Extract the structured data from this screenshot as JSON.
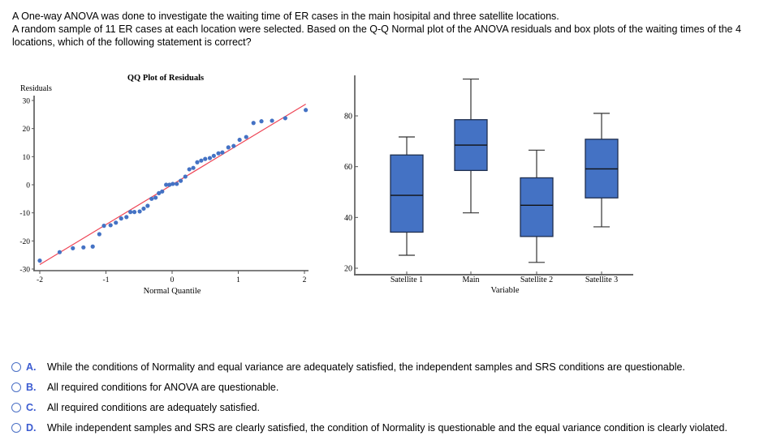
{
  "question": {
    "line1": "A One-way ANOVA was done to investigate the waiting time of ER cases in the main hosipital and three satellite locations.",
    "line2": "A random sample of 11 ER cases at each location were selected. Based on the Q-Q Normal plot of the ANOVA residuals and box plots of the waiting times of the 4 locations, which of the following statement is correct?"
  },
  "colors": {
    "point": "#4472c4",
    "ref_line": "#ee4455",
    "box_fill": "#4472c4",
    "option_letter": "#3b5bd1"
  },
  "chart_data": [
    {
      "type": "scatter",
      "title": "QQ Plot of Residuals",
      "xlabel": "Normal Quantile",
      "ylabel": "Residuals",
      "xlim": [
        -2.05,
        2.05
      ],
      "ylim": [
        -31,
        31
      ],
      "xticks": [
        -2,
        -1,
        0,
        1,
        2
      ],
      "xtick_labels": [
        "-2",
        "-1",
        "0",
        "1",
        "2"
      ],
      "yticks": [
        30,
        20,
        10,
        0,
        -10,
        -20,
        -30
      ],
      "ytick_labels": [
        "30",
        "20",
        "10",
        "0",
        "-10",
        "-20",
        "-30"
      ],
      "grid": false,
      "reference_line": {
        "x": [
          -2.0,
          2.02
        ],
        "y": [
          -28.4,
          28.7
        ]
      },
      "points": [
        [
          -2.0,
          -27.0
        ],
        [
          -1.7,
          -24.0
        ],
        [
          -1.5,
          -22.6
        ],
        [
          -1.34,
          -22.3
        ],
        [
          -1.2,
          -22.0
        ],
        [
          -1.1,
          -17.6
        ],
        [
          -1.03,
          -14.6
        ],
        [
          -0.93,
          -14.4
        ],
        [
          -0.85,
          -13.5
        ],
        [
          -0.77,
          -12.0
        ],
        [
          -0.69,
          -11.5
        ],
        [
          -0.63,
          -9.7
        ],
        [
          -0.57,
          -9.7
        ],
        [
          -0.49,
          -9.5
        ],
        [
          -0.43,
          -8.5
        ],
        [
          -0.37,
          -7.5
        ],
        [
          -0.31,
          -5.0
        ],
        [
          -0.25,
          -4.6
        ],
        [
          -0.2,
          -3.0
        ],
        [
          -0.15,
          -2.4
        ],
        [
          -0.09,
          0.0
        ],
        [
          -0.04,
          0.0
        ],
        [
          0.01,
          0.3
        ],
        [
          0.07,
          0.3
        ],
        [
          0.13,
          1.4
        ],
        [
          0.2,
          2.9
        ],
        [
          0.26,
          5.5
        ],
        [
          0.32,
          6.0
        ],
        [
          0.38,
          8.0
        ],
        [
          0.44,
          8.6
        ],
        [
          0.5,
          9.2
        ],
        [
          0.57,
          9.5
        ],
        [
          0.63,
          10.3
        ],
        [
          0.7,
          11.2
        ],
        [
          0.76,
          11.5
        ],
        [
          0.85,
          13.3
        ],
        [
          0.93,
          13.8
        ],
        [
          1.02,
          16.0
        ],
        [
          1.12,
          17.0
        ],
        [
          1.23,
          22.0
        ],
        [
          1.35,
          22.6
        ],
        [
          1.51,
          22.8
        ],
        [
          1.71,
          23.7
        ],
        [
          2.02,
          26.6
        ]
      ]
    },
    {
      "type": "box",
      "title": "",
      "xlabel": "Variable",
      "ylabel": "",
      "ylim": [
        17.5,
        97
      ],
      "yticks": [
        80,
        60,
        40,
        20
      ],
      "ytick_labels": [
        "80",
        "60",
        "40",
        "20"
      ],
      "grid": false,
      "categories": [
        "Satellite 1",
        "Main",
        "Satellite 2",
        "Satellite 3"
      ],
      "boxes": [
        {
          "name": "Satellite 1",
          "min": 25.1,
          "q1": 34.2,
          "median": 48.7,
          "q3": 64.6,
          "max": 71.7
        },
        {
          "name": "Main",
          "min": 41.8,
          "q1": 58.5,
          "median": 68.5,
          "q3": 78.5,
          "max": 94.5
        },
        {
          "name": "Satellite 2",
          "min": 22.3,
          "q1": 32.5,
          "median": 44.8,
          "q3": 55.6,
          "max": 66.5
        },
        {
          "name": "Satellite 3",
          "min": 36.3,
          "q1": 47.7,
          "median": 59.1,
          "q3": 70.8,
          "max": 81.0
        }
      ]
    }
  ],
  "options": [
    {
      "letter": "A.",
      "text": "While the conditions of Normality and equal variance are adequately satisfied, the independent samples and SRS conditions are questionable."
    },
    {
      "letter": "B.",
      "text": "All required conditions for ANOVA are questionable."
    },
    {
      "letter": "C.",
      "text": "All required conditions are adequately satisfied."
    },
    {
      "letter": "D.",
      "text": "While independent samples and SRS are clearly satisfied, the condition of Normality is questionable and the equal variance condition is clearly violated."
    }
  ]
}
